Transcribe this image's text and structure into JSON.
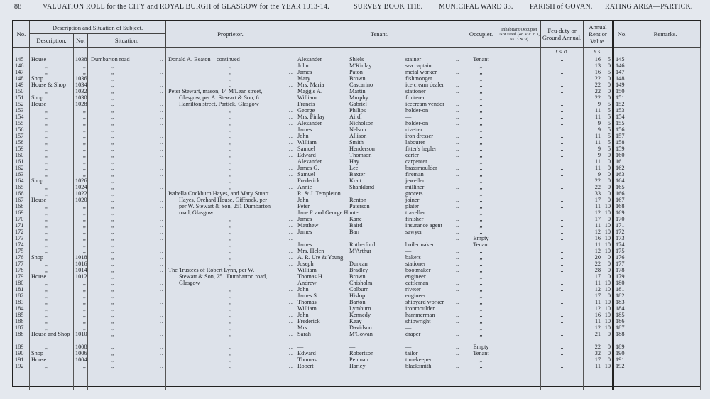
{
  "header": {
    "page_number": "88",
    "title": "VALUATION ROLL for the CITY and ROYAL BURGH of GLASGOW for the YEAR 1913-14.",
    "survey_book": "SURVEY BOOK 1118.",
    "ward": "MUNICIPAL WARD 33.",
    "parish": "PARISH of GOVAN.",
    "rating_area": "RATING AREA—PARTICK."
  },
  "columns": {
    "no": "No.",
    "description_group": "Description and Situation of Subject.",
    "description": "Description.",
    "house_no": "No.",
    "situation": "Situation.",
    "proprietor": "Proprietor.",
    "tenant": "Tenant.",
    "occupier": "Occupier.",
    "inhabitant": "Inhabitant Occupier Not rated (48 Vic. c.3, ss. 3 & 9)",
    "feu_duty": "Feu-duty or Ground Annual.",
    "annual_rent": "Annual Rent or Value.",
    "no_right": "No.",
    "remarks": "Remarks.",
    "feu_units": "£  s.  d.",
    "rent_units": "£  s."
  },
  "rows": [
    {
      "no": "145",
      "desc": "House",
      "num": "1038",
      "sit": "Dumbarton road",
      "prop": "Donald A. Beaton—continued",
      "first": "Alexander",
      "last": "Shiels",
      "trade": "stainer",
      "occ": "Tenant",
      "feu": "..",
      "l": "16",
      "s": "5",
      "no2": "145"
    },
    {
      "no": "146",
      "desc": ",,",
      "num": ",,",
      "sit": ",,",
      "prop": ",,",
      "first": "John",
      "last": "M'Kinlay",
      "trade": "sea captain",
      "occ": ",,",
      "feu": "..",
      "l": "13",
      "s": "0",
      "no2": "146"
    },
    {
      "no": "147",
      "desc": ",,",
      "num": ",,",
      "sit": ",,",
      "prop": ",,",
      "first": "James",
      "last": "Paton",
      "trade": "metal worker",
      "occ": ",,",
      "feu": "..",
      "l": "16",
      "s": "5",
      "no2": "147"
    },
    {
      "no": "148",
      "desc": "Shop",
      "num": "1036",
      "sit": ",,",
      "prop": ",,",
      "first": "Mary",
      "last": "Brown",
      "trade": "fishmonger",
      "occ": ",,",
      "feu": "..",
      "l": "22",
      "s": "0",
      "no2": "148"
    },
    {
      "no": "149",
      "desc": "House & Shop",
      "num": "1034",
      "sit": ",,",
      "prop": ",,",
      "first": "Mrs. Maria",
      "last": "Cascarino",
      "trade": "ice cream dealer",
      "occ": ",,",
      "feu": "..",
      "l": "22",
      "s": "0",
      "no2": "149"
    },
    {
      "no": "150",
      "desc": ",,",
      "num": "1032",
      "sit": ",,",
      "prop": "Peter Stewart, mason, 14 M'Lean street,",
      "first": "Maggie A.",
      "last": "Martin",
      "trade": "stationer",
      "occ": ",,",
      "feu": "..",
      "l": "22",
      "s": "0",
      "no2": "150"
    },
    {
      "no": "151",
      "desc": "Shop",
      "num": "1030",
      "sit": ",,",
      "prop": "Glasgow, per A. Stewart & Son, 6",
      "first": "William",
      "last": "Murphy",
      "trade": "fruiterer",
      "occ": ",,",
      "feu": "..",
      "l": "22",
      "s": "0",
      "no2": "151"
    },
    {
      "no": "152",
      "desc": "House",
      "num": "1028",
      "sit": ",,",
      "prop": "Hamilton street, Partick, Glasgow",
      "first": "Francis",
      "last": "Gabriel",
      "trade": "icecream vendor",
      "occ": ",,",
      "feu": "..",
      "l": "9",
      "s": "5",
      "no2": "152"
    },
    {
      "no": "153",
      "desc": ",,",
      "num": ",,",
      "sit": ",,",
      "prop": ",,",
      "first": "George",
      "last": "Philips",
      "trade": "holder-on",
      "occ": ",,",
      "feu": "..",
      "l": "11",
      "s": "5",
      "no2": "153"
    },
    {
      "no": "154",
      "desc": ",,",
      "num": ",,",
      "sit": ",,",
      "prop": ",,",
      "first": "Mrs. Finlay",
      "last": "Airdl",
      "trade": "—",
      "occ": ",,",
      "feu": "..",
      "l": "11",
      "s": "5",
      "no2": "154"
    },
    {
      "no": "155",
      "desc": ",,",
      "num": ",,",
      "sit": ",,",
      "prop": ",,",
      "first": "Alexander",
      "last": "Nicholson",
      "trade": "holder-on",
      "occ": ",,",
      "feu": "..",
      "l": "9",
      "s": "5",
      "no2": "155"
    },
    {
      "no": "156",
      "desc": ",,",
      "num": ",,",
      "sit": ",,",
      "prop": ",,",
      "first": "James",
      "last": "Nelson",
      "trade": "rivetter",
      "occ": ",,",
      "feu": "..",
      "l": "9",
      "s": "5",
      "no2": "156"
    },
    {
      "no": "157",
      "desc": ",,",
      "num": ",,",
      "sit": ",,",
      "prop": ",,",
      "first": "John",
      "last": "Allison",
      "trade": "iron dresser",
      "occ": ",,",
      "feu": "..",
      "l": "11",
      "s": "5",
      "no2": "157"
    },
    {
      "no": "158",
      "desc": ",,",
      "num": ",,",
      "sit": ",,",
      "prop": ",,",
      "first": "William",
      "last": "Smith",
      "trade": "labourer",
      "occ": ",,",
      "feu": "..",
      "l": "11",
      "s": "5",
      "no2": "158"
    },
    {
      "no": "159",
      "desc": ",,",
      "num": ",,",
      "sit": ",,",
      "prop": ",,",
      "first": "Samuel",
      "last": "Henderson",
      "trade": "fitter's hepler",
      "occ": ",,",
      "feu": "..",
      "l": "9",
      "s": "5",
      "no2": "159"
    },
    {
      "no": "160",
      "desc": ",,",
      "num": ",,",
      "sit": ",,",
      "prop": ",,",
      "first": "Edward",
      "last": "Thomson",
      "trade": "carter",
      "occ": ",,",
      "feu": "..",
      "l": "9",
      "s": "0",
      "no2": "160"
    },
    {
      "no": "161",
      "desc": ",,",
      "num": ",,",
      "sit": ",,",
      "prop": ",,",
      "first": "Alexander",
      "last": "Hay",
      "trade": "carpenter",
      "occ": ",,",
      "feu": "..",
      "l": "11",
      "s": "0",
      "no2": "161"
    },
    {
      "no": "162",
      "desc": ",,",
      "num": ",,",
      "sit": ",,",
      "prop": ",,",
      "first": "James G.",
      "last": "Lee",
      "trade": "brassmoulder",
      "occ": ",,",
      "feu": "..",
      "l": "11",
      "s": "0",
      "no2": "162"
    },
    {
      "no": "163",
      "desc": ",,",
      "num": ",,",
      "sit": ",,",
      "prop": ",,",
      "first": "Samuel",
      "last": "Baxter",
      "trade": "fireman",
      "occ": ",,",
      "feu": "..",
      "l": "9",
      "s": "0",
      "no2": "163"
    },
    {
      "no": "164",
      "desc": "Shop",
      "num": "1026",
      "sit": ",,",
      "prop": ",,",
      "first": "Frederick",
      "last": "Kratt",
      "trade": "jeweller",
      "occ": ",,",
      "feu": "..",
      "l": "22",
      "s": "0",
      "no2": "164"
    },
    {
      "no": "165",
      "desc": ",,",
      "num": "1024",
      "sit": ",,",
      "prop": ",,",
      "first": "Annie",
      "last": "Shankland",
      "trade": "milliner",
      "occ": ",,",
      "feu": "..",
      "l": "22",
      "s": "0",
      "no2": "165"
    },
    {
      "no": "166",
      "desc": ",,",
      "num": "1022",
      "sit": ",,",
      "prop": "Isabella Cockburn Hayes, and Mary Stuart",
      "first": "R. & J. Templeton",
      "last": "",
      "trade": "grocers",
      "occ": ",,",
      "feu": "..",
      "l": "33",
      "s": "0",
      "no2": "166"
    },
    {
      "no": "167",
      "desc": "House",
      "num": "1020",
      "sit": ",,",
      "prop": "Hayes, Orchard House, Giffnock, per",
      "first": "John",
      "last": "Renton",
      "trade": "joiner",
      "occ": ",,",
      "feu": "..",
      "l": "17",
      "s": "0",
      "no2": "167"
    },
    {
      "no": "168",
      "desc": ",,",
      "num": ",,",
      "sit": ",,",
      "prop": "per W. Stewart & Son, 251 Dumbarton",
      "first": "Peter",
      "last": "Paterson",
      "trade": "plater",
      "occ": ",,",
      "feu": "..",
      "l": "11",
      "s": "10",
      "no2": "168"
    },
    {
      "no": "169",
      "desc": ",,",
      "num": ",,",
      "sit": ",,",
      "prop": "road, Glasgow",
      "first": "Jane F. and George Hunter",
      "last": "",
      "trade": "traveller",
      "occ": ",,",
      "feu": "..",
      "l": "12",
      "s": "10",
      "no2": "169"
    },
    {
      "no": "170",
      "desc": ",,",
      "num": ",,",
      "sit": ",,",
      "prop": ",,",
      "first": "James",
      "last": "Kane",
      "trade": "finisher",
      "occ": ",,",
      "feu": "..",
      "l": "17",
      "s": "0",
      "no2": "170"
    },
    {
      "no": "171",
      "desc": ",,",
      "num": ",,",
      "sit": ",,",
      "prop": ",,",
      "first": "Matthew",
      "last": "Baird",
      "trade": "insurance agent",
      "occ": ",,",
      "feu": "..",
      "l": "11",
      "s": "10",
      "no2": "171"
    },
    {
      "no": "172",
      "desc": ",,",
      "num": ",,",
      "sit": ",,",
      "prop": ",,",
      "first": "James",
      "last": "Barr",
      "trade": "sawyer",
      "occ": ",,",
      "feu": "..",
      "l": "12",
      "s": "10",
      "no2": "172"
    },
    {
      "no": "173",
      "desc": ",,",
      "num": ",,",
      "sit": ",,",
      "prop": ",,",
      "first": "—",
      "last": "—",
      "trade": "—",
      "occ": "Empty",
      "feu": "..",
      "l": "16",
      "s": "10",
      "no2": "173"
    },
    {
      "no": "174",
      "desc": ",,",
      "num": ",,",
      "sit": ",,",
      "prop": ",,",
      "first": "James",
      "last": "Rutherford",
      "trade": "boilermaker",
      "occ": "Tenant",
      "feu": "..",
      "l": "11",
      "s": "10",
      "no2": "174"
    },
    {
      "no": "175",
      "desc": ",,",
      "num": ",,",
      "sit": ",,",
      "prop": ",,",
      "first": "Mrs. Helen",
      "last": "M'Arthur",
      "trade": "—",
      "occ": ",,",
      "feu": "..",
      "l": "12",
      "s": "10",
      "no2": "175"
    },
    {
      "no": "176",
      "desc": "Shop",
      "num": "1018",
      "sit": ",,",
      "prop": ",,",
      "first": "A. R. Ure & Young",
      "last": "",
      "trade": "bakers",
      "occ": ",,",
      "feu": "..",
      "l": "20",
      "s": "0",
      "no2": "176"
    },
    {
      "no": "177",
      "desc": ",,",
      "num": "1016",
      "sit": ",,",
      "prop": ",,",
      "first": "Joseph",
      "last": "Duncan",
      "trade": "stationer",
      "occ": ",,",
      "feu": "..",
      "l": "22",
      "s": "0",
      "no2": "177"
    },
    {
      "no": "178",
      "desc": ",,",
      "num": "1014",
      "sit": ",,",
      "prop": "The Trustees of Robert Lynn, per W.",
      "first": "William",
      "last": "Bradley",
      "trade": "bootmaker",
      "occ": ",,",
      "feu": "..",
      "l": "28",
      "s": "0",
      "no2": "178"
    },
    {
      "no": "179",
      "desc": "House",
      "num": "1012",
      "sit": ",,",
      "prop": "Stewart & Son, 251 Dumbarton road,",
      "first": "Thomas H.",
      "last": "Brown",
      "trade": "engineer",
      "occ": ",,",
      "feu": "..",
      "l": "17",
      "s": "0",
      "no2": "179"
    },
    {
      "no": "180",
      "desc": ",,",
      "num": ",,",
      "sit": ",,",
      "prop": "Glasgow",
      "first": "Andrew",
      "last": "Chisholm",
      "trade": "cattleman",
      "occ": ",,",
      "feu": "..",
      "l": "11",
      "s": "10",
      "no2": "180"
    },
    {
      "no": "181",
      "desc": ",,",
      "num": ",,",
      "sit": ",,",
      "prop": ",,",
      "first": "John",
      "last": "Colburn",
      "trade": "riveter",
      "occ": ",,",
      "feu": "..",
      "l": "12",
      "s": "10",
      "no2": "181"
    },
    {
      "no": "182",
      "desc": ",,",
      "num": ",,",
      "sit": ",,",
      "prop": ",,",
      "first": "James S.",
      "last": "Hislop",
      "trade": "engineer",
      "occ": ",,",
      "feu": "..",
      "l": "17",
      "s": "0",
      "no2": "182"
    },
    {
      "no": "183",
      "desc": ",,",
      "num": ",,",
      "sit": ",,",
      "prop": ",,",
      "first": "Thomas",
      "last": "Barton",
      "trade": "shipyard worker",
      "occ": ",,",
      "feu": "..",
      "l": "11",
      "s": "10",
      "no2": "183"
    },
    {
      "no": "184",
      "desc": ",,",
      "num": ",,",
      "sit": ",,",
      "prop": ",,",
      "first": "William",
      "last": "Lymburn",
      "trade": "ironmoulder",
      "occ": ",,",
      "feu": "..",
      "l": "12",
      "s": "10",
      "no2": "184"
    },
    {
      "no": "185",
      "desc": ",,",
      "num": ",,",
      "sit": ",,",
      "prop": ",,",
      "first": "John",
      "last": "Kennedy",
      "trade": "hammerman",
      "occ": ",,",
      "feu": "..",
      "l": "16",
      "s": "10",
      "no2": "185"
    },
    {
      "no": "186",
      "desc": ",,",
      "num": ",,",
      "sit": ",,",
      "prop": ",,",
      "first": "Frederick",
      "last": "Keay",
      "trade": "shipwright",
      "occ": ",,",
      "feu": "..",
      "l": "11",
      "s": "10",
      "no2": "186"
    },
    {
      "no": "187",
      "desc": ",,",
      "num": ",,",
      "sit": ",,",
      "prop": ",,",
      "first": "Mrs",
      "last": "Davidson",
      "trade": "—",
      "occ": ",,",
      "feu": "..",
      "l": "12",
      "s": "10",
      "no2": "187"
    },
    {
      "no": "188",
      "desc": "House and Shop",
      "num": "1010",
      "sit": ",,",
      "prop": ",,",
      "first": "Sarah",
      "last": "M'Gowan",
      "trade": "draper",
      "occ": ",,",
      "feu": "..",
      "l": "21",
      "s": "0",
      "no2": "188"
    },
    {
      "no": "189",
      "desc": ",,",
      "num": "1008",
      "sit": ",,",
      "prop": ",,",
      "first": "—",
      "last": "—",
      "trade": "—",
      "occ": "Empty",
      "feu": "..",
      "l": "22",
      "s": "0",
      "no2": "189"
    },
    {
      "no": "190",
      "desc": "Shop",
      "num": "1006",
      "sit": ",,",
      "prop": ",,",
      "first": "Edward",
      "last": "Robertson",
      "trade": "tailor",
      "occ": "Tenant",
      "feu": "..",
      "l": "32",
      "s": "0",
      "no2": "190"
    },
    {
      "no": "191",
      "desc": "House",
      "num": "1004",
      "sit": ",,",
      "prop": ",,",
      "first": "Thomas",
      "last": "Penman",
      "trade": "timekeeper",
      "occ": ",,",
      "feu": "..",
      "l": "17",
      "s": "0",
      "no2": "191"
    },
    {
      "no": "192",
      "desc": ",,",
      "num": ",,",
      "sit": ",,",
      "prop": ",,",
      "first": "Robert",
      "last": "Harley",
      "trade": "blacksmith",
      "occ": ",,",
      "feu": "..",
      "l": "11",
      "s": "10",
      "no2": "192"
    }
  ]
}
